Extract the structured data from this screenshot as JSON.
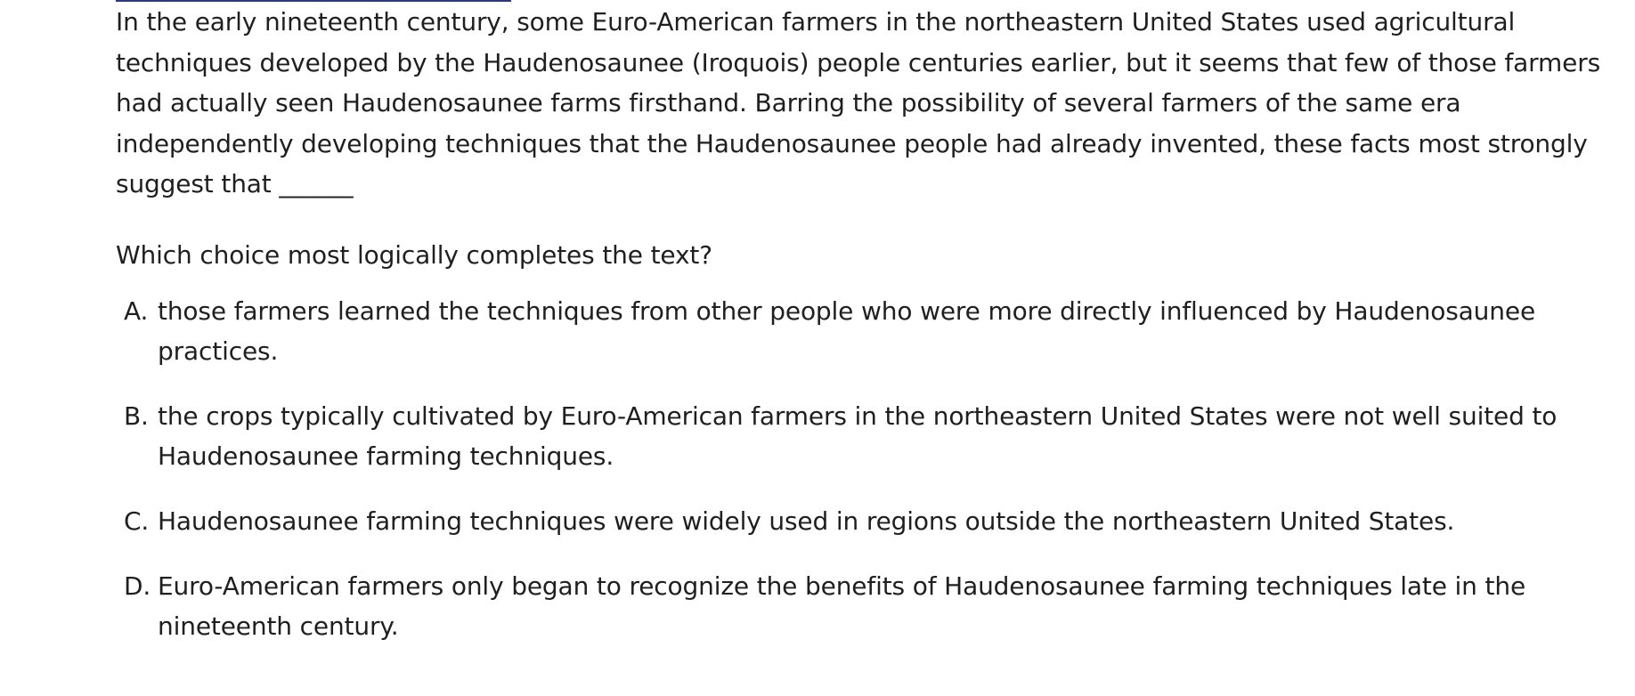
{
  "passage": "In the early nineteenth century, some Euro-American farmers in the northeastern United States used agricultural techniques developed by the Haudenosaunee (Iroquois) people centuries earlier, but it seems that few of those farmers had actually seen Haudenosaunee farms firsthand. Barring the possibility of several farmers of the same era independently developing techniques that the Haudenosaunee people had already invented, these facts most strongly suggest that ______",
  "question": "Which choice most logically completes the text?",
  "choices": [
    {
      "letter": "A.",
      "text": "those farmers learned the techniques from other people who were more directly influenced by Haudenosaunee practices."
    },
    {
      "letter": "B.",
      "text": "the crops typically cultivated by Euro-American farmers in the northeastern United States were not well suited to Haudenosaunee farming techniques."
    },
    {
      "letter": "C.",
      "text": "Haudenosaunee farming techniques were widely used in regions outside the northeastern United States."
    },
    {
      "letter": "D.",
      "text": "Euro-American farmers only began to recognize the benefits of Haudenosaunee farming techniques late in the nineteenth century."
    }
  ]
}
